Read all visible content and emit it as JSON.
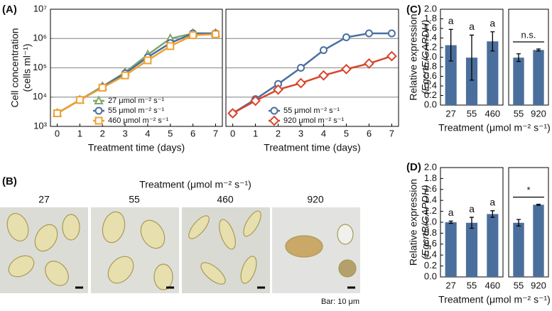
{
  "chart_data": [
    {
      "type": "line",
      "panel_label": "(A)",
      "log_y": true,
      "grid": true,
      "legend": "lower right",
      "ylabel": [
        "Cell concentration",
        "(cells ml⁻¹)"
      ],
      "xlabel": "Treatment time (days)",
      "x": [
        0,
        1,
        2,
        3,
        4,
        5,
        6,
        7
      ],
      "xlim": [
        -0.3,
        7.3
      ],
      "xticks": [
        0,
        1,
        2,
        3,
        4,
        5,
        6,
        7
      ],
      "ylim": [
        1000,
        10000000
      ],
      "yticks": [
        {
          "value": 1000,
          "label": "10³"
        },
        {
          "value": 10000,
          "label": "10⁴"
        },
        {
          "value": 100000,
          "label": "10⁵"
        },
        {
          "value": 1000000,
          "label": "10⁶"
        },
        {
          "value": 10000000,
          "label": "10⁷"
        }
      ],
      "series": [
        {
          "name": "27 μmol m⁻² s⁻¹",
          "color": "#7fa86a",
          "marker": "triangle",
          "values": [
            2800,
            8000,
            23000,
            70000,
            280000,
            1000000,
            1500000,
            1500000
          ]
        },
        {
          "name": "55 μmol m⁻² s⁻¹",
          "color": "#4a6fa0",
          "marker": "circle",
          "values": [
            2800,
            8000,
            22000,
            65000,
            230000,
            700000,
            1500000,
            1500000
          ]
        },
        {
          "name": "460 μmol m⁻² s⁻¹",
          "color": "#f0a030",
          "marker": "square",
          "values": [
            2800,
            8000,
            21000,
            55000,
            180000,
            550000,
            1300000,
            1400000
          ]
        }
      ]
    },
    {
      "type": "line",
      "log_y": true,
      "grid": true,
      "legend": "lower right",
      "xlabel": "Treatment time (days)",
      "x": [
        0,
        1,
        2,
        3,
        4,
        5,
        6,
        7
      ],
      "xlim": [
        -0.3,
        7.3
      ],
      "xticks": [
        0,
        1,
        2,
        3,
        4,
        5,
        6,
        7
      ],
      "ylim": [
        1000,
        10000000
      ],
      "series": [
        {
          "name": "55 μmol m⁻² s⁻¹",
          "color": "#4a6fa0",
          "marker": "circle",
          "values": [
            2800,
            8500,
            28000,
            100000,
            400000,
            1100000,
            1500000,
            1500000
          ]
        },
        {
          "name": "920 μmol m⁻² s⁻¹",
          "color": "#d9452b",
          "marker": "diamond",
          "values": [
            2800,
            7500,
            18000,
            30000,
            55000,
            90000,
            140000,
            250000
          ]
        }
      ]
    },
    {
      "type": "bar",
      "panel_label": "(C)",
      "color": "#4b6f9c",
      "ylabel": [
        "Relative expression",
        "(EgcrtE/GAPDH)"
      ],
      "xlabel": "Treatment (μmol m⁻² s⁻¹)",
      "categories": [
        "27",
        "55",
        "460"
      ],
      "values": [
        1.25,
        0.99,
        1.33
      ],
      "errors": [
        0.33,
        0.47,
        0.2
      ],
      "annotations": [
        "a",
        "a",
        "a"
      ],
      "ylim": [
        0,
        2.0
      ],
      "yticks": [
        {
          "value": 0,
          "label": "0.0"
        },
        0.2,
        0.4,
        0.6,
        0.8,
        {
          "value": 1,
          "label": "1.0"
        },
        1.2,
        1.4,
        1.6,
        1.8,
        {
          "value": 2,
          "label": "2.0"
        }
      ]
    },
    {
      "type": "bar",
      "color": "#4b6f9c",
      "categories": [
        "55",
        "920"
      ],
      "values": [
        0.99,
        1.15
      ],
      "errors": [
        0.08,
        0.02
      ],
      "annotations": [
        "n.s."
      ],
      "ylim": [
        0,
        2.0
      ]
    },
    {
      "type": "bar",
      "panel_label": "(D)",
      "color": "#4b6f9c",
      "ylabel": [
        "Relative expression",
        "(EgcrtB/GAPDH)"
      ],
      "xlabel": "Treatment (μmol m⁻² s⁻¹)",
      "categories": [
        "27",
        "55",
        "460"
      ],
      "values": [
        1.0,
        0.99,
        1.15
      ],
      "errors": [
        0.02,
        0.1,
        0.06
      ],
      "annotations": [
        "a",
        "a",
        "a"
      ],
      "ylim": [
        0,
        2.0
      ],
      "yticks": [
        {
          "value": 0,
          "label": "0.0"
        },
        0.2,
        0.4,
        0.6,
        0.8,
        {
          "value": 1,
          "label": "1.0"
        },
        1.2,
        1.4,
        1.6,
        1.8,
        {
          "value": 2,
          "label": "2.0"
        }
      ]
    },
    {
      "type": "bar",
      "color": "#4b6f9c",
      "categories": [
        "55",
        "920"
      ],
      "values": [
        0.99,
        1.32
      ],
      "errors": [
        0.06,
        0.01
      ],
      "annotations": [
        "*"
      ],
      "ylim": [
        0,
        2.0
      ]
    }
  ],
  "micrographs": {
    "panel_label": "(B)",
    "title": "Treatment (μmol m⁻² s⁻¹)",
    "labels": [
      "27",
      "55",
      "460",
      "920"
    ],
    "scale_note": "Bar: 10 μm"
  }
}
